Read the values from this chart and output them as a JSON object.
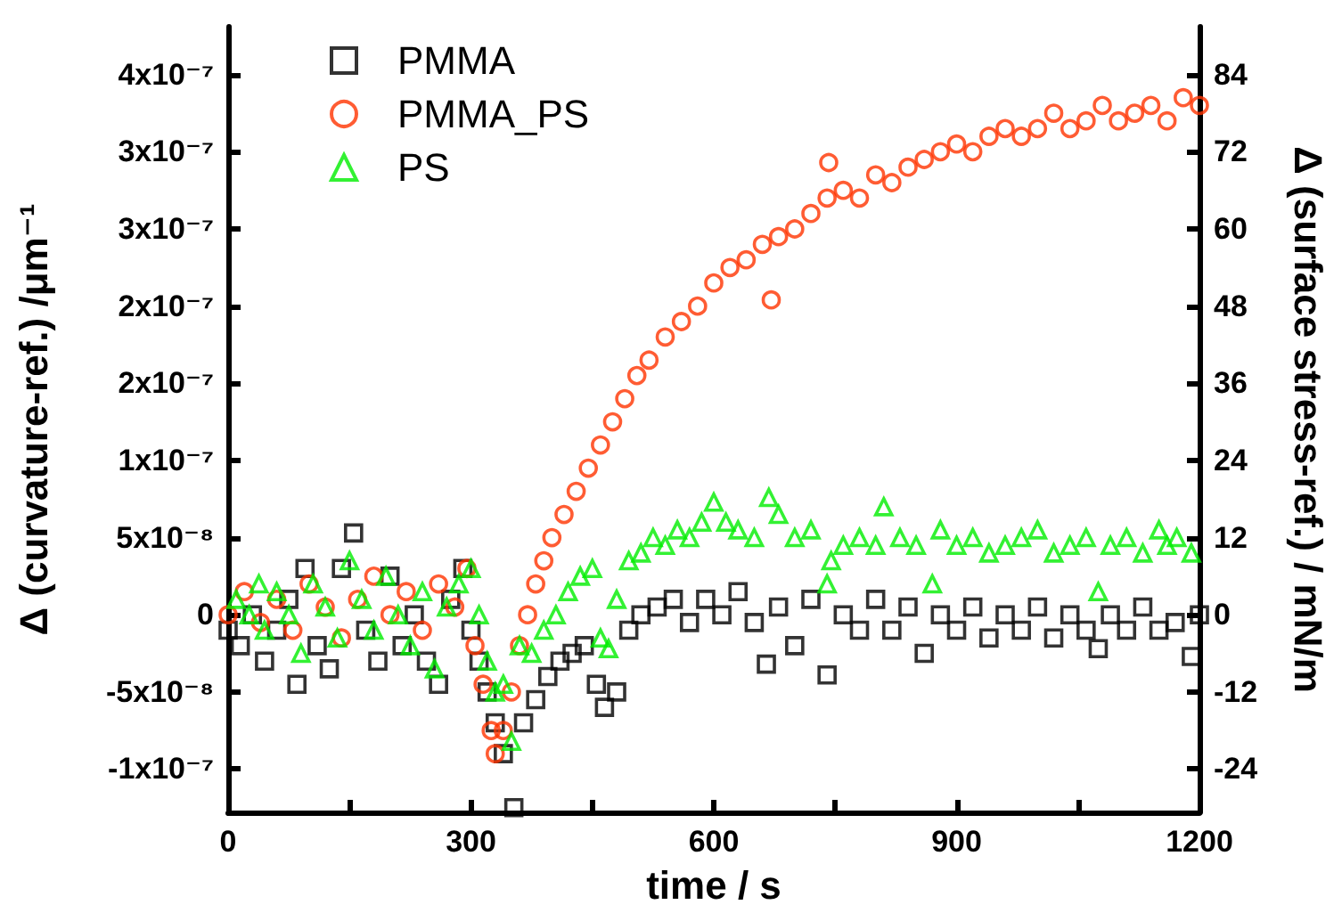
{
  "chart_data": {
    "type": "scatter",
    "xlabel": "time / s",
    "ylabel": "Δ (curvature-ref.) /μm⁻¹",
    "y2label": "Δ (surface stress-ref.) / mN/m",
    "xlim": [
      0,
      1200
    ],
    "xticks": [
      0,
      {
        "value": 150,
        "label": null
      },
      300,
      {
        "value": 450,
        "label": null
      },
      600,
      {
        "value": 750,
        "label": null
      },
      900,
      {
        "value": 1050,
        "label": null
      },
      1200
    ],
    "ylim": [
      -1.28e-07,
      3.81e-07
    ],
    "yticks": [
      {
        "value": -1e-07,
        "label": "-1x10⁻⁷"
      },
      {
        "value": -5e-08,
        "label": "-5x10⁻⁸"
      },
      0,
      {
        "value": 5e-08,
        "label": "5x10⁻⁸"
      },
      {
        "value": 1e-07,
        "label": "1x10⁻⁷"
      },
      {
        "value": 1.5e-07,
        "label": "2x10⁻⁷"
      },
      {
        "value": 2e-07,
        "label": "2x10⁻⁷"
      },
      {
        "value": 2.5e-07,
        "label": "3x10⁻⁷"
      },
      {
        "value": 3e-07,
        "label": "3x10⁻⁷"
      },
      {
        "value": 3.5e-07,
        "label": "4x10⁻⁷"
      }
    ],
    "y2lim": [
      -30.72,
      91.44
    ],
    "y2ticks": [
      -24,
      -12,
      0,
      12,
      24,
      36,
      48,
      60,
      72,
      84
    ],
    "legend": "top left",
    "grid": false,
    "series": [
      {
        "name": "PMMA",
        "color": "#000000",
        "marker": "square",
        "x": [
          0,
          15,
          30,
          45,
          60,
          75,
          85,
          95,
          110,
          125,
          140,
          155,
          170,
          185,
          200,
          215,
          230,
          245,
          260,
          275,
          290,
          300,
          310,
          320,
          330,
          340,
          353,
          365,
          380,
          395,
          410,
          425,
          440,
          455,
          465,
          480,
          495,
          510,
          530,
          550,
          570,
          590,
          610,
          630,
          650,
          665,
          680,
          700,
          720,
          740,
          760,
          780,
          800,
          820,
          840,
          860,
          880,
          900,
          920,
          940,
          960,
          980,
          1000,
          1020,
          1040,
          1060,
          1075,
          1090,
          1110,
          1130,
          1150,
          1170,
          1190,
          1200
        ],
        "values": [
          -1e-08,
          -2e-08,
          0,
          -3e-08,
          -1e-08,
          1e-08,
          -4.5e-08,
          3e-08,
          -2e-08,
          -3.5e-08,
          3e-08,
          5.3e-08,
          -1e-08,
          -3e-08,
          2.5e-08,
          -2e-08,
          0,
          -3e-08,
          -4.5e-08,
          1e-08,
          3e-08,
          -1e-08,
          -3e-08,
          -5e-08,
          -7e-08,
          -9e-08,
          -1.25e-07,
          -7e-08,
          -5.5e-08,
          -4e-08,
          -3e-08,
          -2.5e-08,
          -2e-08,
          -4.5e-08,
          -6e-08,
          -5e-08,
          -1e-08,
          0,
          5e-09,
          1e-08,
          -5e-09,
          1e-08,
          0,
          1.5e-08,
          -5e-09,
          -3.2e-08,
          5e-09,
          -2e-08,
          1e-08,
          -3.9e-08,
          0,
          -1e-08,
          1e-08,
          -1e-08,
          5e-09,
          -2.5e-08,
          0,
          -1e-08,
          5e-09,
          -1.5e-08,
          0,
          -1e-08,
          5e-09,
          -1.5e-08,
          0,
          -1e-08,
          -2.2e-08,
          0,
          -1e-08,
          5e-09,
          -1e-08,
          -5e-09,
          -2.7e-08,
          0
        ]
      },
      {
        "name": "PMMA_PS",
        "color": "#ff3300",
        "marker": "circle",
        "x": [
          0,
          20,
          40,
          60,
          80,
          100,
          120,
          140,
          160,
          180,
          200,
          220,
          240,
          260,
          280,
          295,
          305,
          315,
          325,
          330,
          340,
          350,
          360,
          370,
          380,
          390,
          400,
          415,
          430,
          445,
          460,
          475,
          490,
          505,
          520,
          540,
          560,
          580,
          600,
          620,
          640,
          660,
          671,
          680,
          700,
          720,
          740,
          742,
          760,
          780,
          800,
          820,
          840,
          860,
          880,
          900,
          920,
          940,
          960,
          980,
          1000,
          1020,
          1040,
          1060,
          1080,
          1100,
          1120,
          1140,
          1160,
          1180,
          1200
        ],
        "values": [
          0,
          1.5e-08,
          -5e-09,
          1e-08,
          -1e-08,
          2e-08,
          5e-09,
          -1.5e-08,
          1e-08,
          2.5e-08,
          0,
          1.5e-08,
          -1e-08,
          2e-08,
          5e-09,
          3e-08,
          -2e-08,
          -4.5e-08,
          -7.5e-08,
          -9e-08,
          -7.5e-08,
          -5e-08,
          -2e-08,
          0,
          2e-08,
          3.5e-08,
          5e-08,
          6.5e-08,
          8e-08,
          9.5e-08,
          1.1e-07,
          1.25e-07,
          1.4e-07,
          1.55e-07,
          1.65e-07,
          1.8e-07,
          1.9e-07,
          2e-07,
          2.15e-07,
          2.25e-07,
          2.3e-07,
          2.4e-07,
          2.04e-07,
          2.45e-07,
          2.5e-07,
          2.6e-07,
          2.7e-07,
          2.93e-07,
          2.75e-07,
          2.7e-07,
          2.85e-07,
          2.8e-07,
          2.9e-07,
          2.95e-07,
          3e-07,
          3.05e-07,
          3e-07,
          3.1e-07,
          3.15e-07,
          3.1e-07,
          3.15e-07,
          3.25e-07,
          3.15e-07,
          3.2e-07,
          3.3e-07,
          3.2e-07,
          3.25e-07,
          3.3e-07,
          3.2e-07,
          3.35e-07,
          3.3e-07
        ]
      },
      {
        "name": "PS",
        "color": "#00ee00",
        "marker": "triangle",
        "x": [
          10,
          26,
          38,
          45,
          60,
          75,
          90,
          105,
          120,
          135,
          150,
          165,
          180,
          195,
          210,
          225,
          240,
          255,
          270,
          285,
          300,
          310,
          320,
          330,
          340,
          350,
          360,
          375,
          390,
          405,
          420,
          435,
          450,
          460,
          470,
          480,
          495,
          510,
          525,
          540,
          555,
          570,
          585,
          600,
          615,
          630,
          650,
          668,
          680,
          700,
          720,
          740,
          745,
          760,
          780,
          800,
          810,
          830,
          850,
          870,
          880,
          900,
          920,
          940,
          960,
          980,
          1000,
          1020,
          1040,
          1060,
          1075,
          1090,
          1110,
          1130,
          1150,
          1160,
          1172,
          1190
        ],
        "values": [
          1e-08,
          0,
          2e-08,
          -1e-08,
          1.5e-08,
          0,
          -2.5e-08,
          2e-08,
          5e-09,
          -1.5e-08,
          3.5e-08,
          1e-08,
          -1e-08,
          2.5e-08,
          0,
          -2e-08,
          1.5e-08,
          -3.5e-08,
          5e-09,
          2e-08,
          3e-08,
          0,
          -3e-08,
          -5e-08,
          -4.5e-08,
          -8.2e-08,
          -2e-08,
          -2.5e-08,
          -1e-08,
          0,
          1.5e-08,
          2.5e-08,
          3e-08,
          -1.5e-08,
          -2.2e-08,
          1e-08,
          3.5e-08,
          4e-08,
          5e-08,
          4.5e-08,
          5.5e-08,
          5e-08,
          6e-08,
          7.3e-08,
          6e-08,
          5.5e-08,
          5e-08,
          7.6e-08,
          6.5e-08,
          5e-08,
          5.5e-08,
          2e-08,
          3.5e-08,
          4.5e-08,
          5e-08,
          4.5e-08,
          7e-08,
          5e-08,
          4.5e-08,
          2e-08,
          5.5e-08,
          4.5e-08,
          5e-08,
          4e-08,
          4.5e-08,
          5e-08,
          5.5e-08,
          4e-08,
          4.5e-08,
          5e-08,
          1.5e-08,
          4.5e-08,
          5e-08,
          4e-08,
          5.5e-08,
          4.5e-08,
          5e-08,
          4e-08
        ]
      }
    ]
  }
}
